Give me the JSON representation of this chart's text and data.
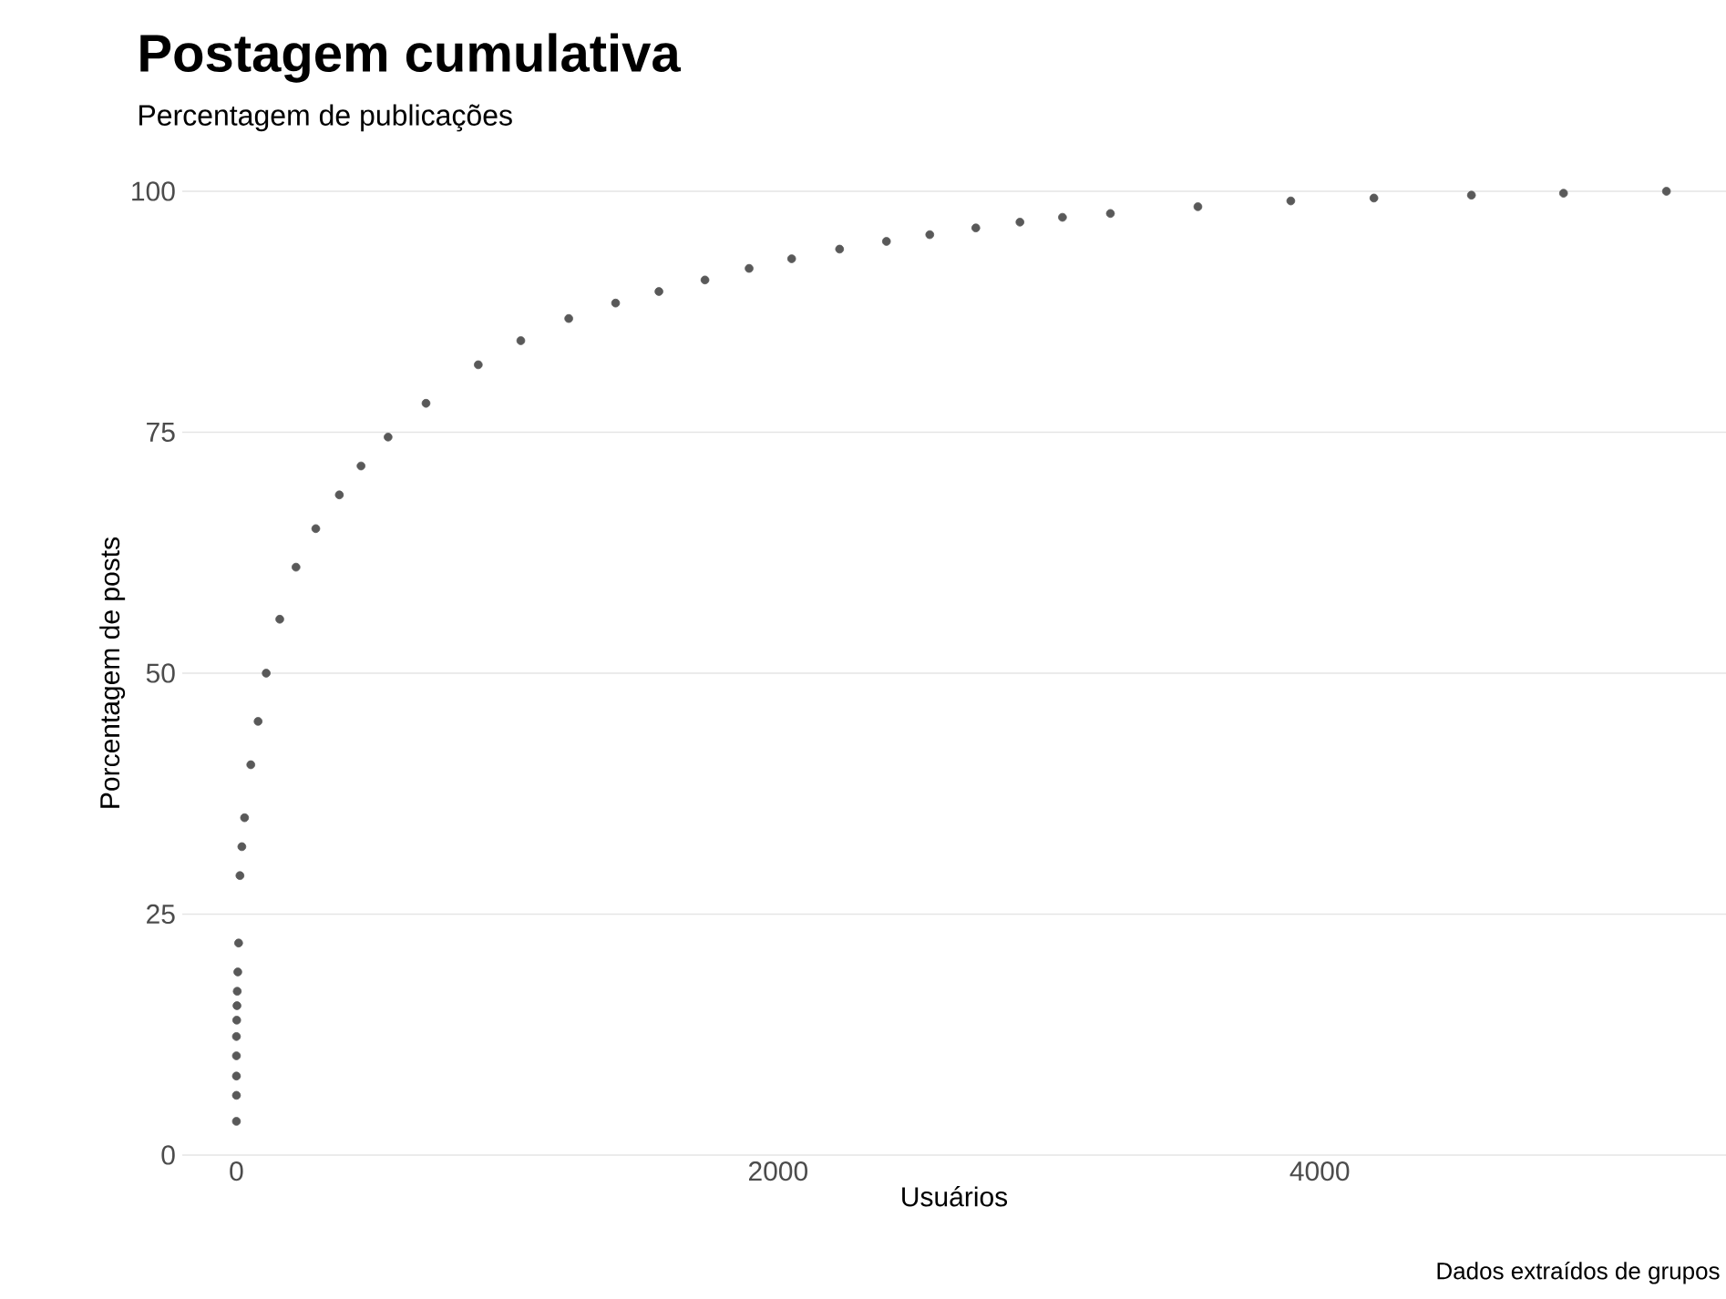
{
  "chart_data": {
    "type": "scatter",
    "title": "Postagem cumulativa",
    "subtitle": "Percentagem de publicações",
    "xlabel": "Usuários",
    "ylabel": "Porcentagem de posts",
    "annotations": [
      "Dados extraídos de grupos"
    ],
    "series": [
      {
        "color": "#595959",
        "x": [
          0,
          0,
          0,
          0,
          0,
          1,
          2,
          3,
          5,
          8,
          13,
          20,
          30,
          53,
          80,
          110,
          160,
          220,
          293,
          380,
          460,
          560,
          700,
          893,
          1050,
          1227,
          1400,
          1560,
          1730,
          1893,
          2050,
          2227,
          2400,
          2560,
          2730,
          2893,
          3050,
          3227,
          3550,
          3893,
          4200,
          4560,
          4900,
          5280
        ],
        "values": [
          3.5,
          6.2,
          8.2,
          10.3,
          12.3,
          14,
          15.5,
          17,
          19,
          22,
          29,
          32,
          35,
          40.5,
          45,
          50,
          55.6,
          61,
          65,
          68.5,
          71.5,
          74.5,
          78,
          82,
          84.5,
          86.8,
          88.4,
          89.6,
          90.8,
          92,
          93,
          94,
          94.8,
          95.5,
          96.2,
          96.8,
          97.3,
          97.7,
          98.4,
          99,
          99.3,
          99.6,
          99.8,
          100
        ]
      }
    ],
    "xlim": [
      -200,
      5500
    ],
    "ylim": [
      0,
      100
    ],
    "xticks": [
      0,
      2000,
      4000
    ],
    "yticks": [
      0,
      25,
      50,
      75,
      100
    ],
    "grid": "y",
    "marker": "circle"
  }
}
